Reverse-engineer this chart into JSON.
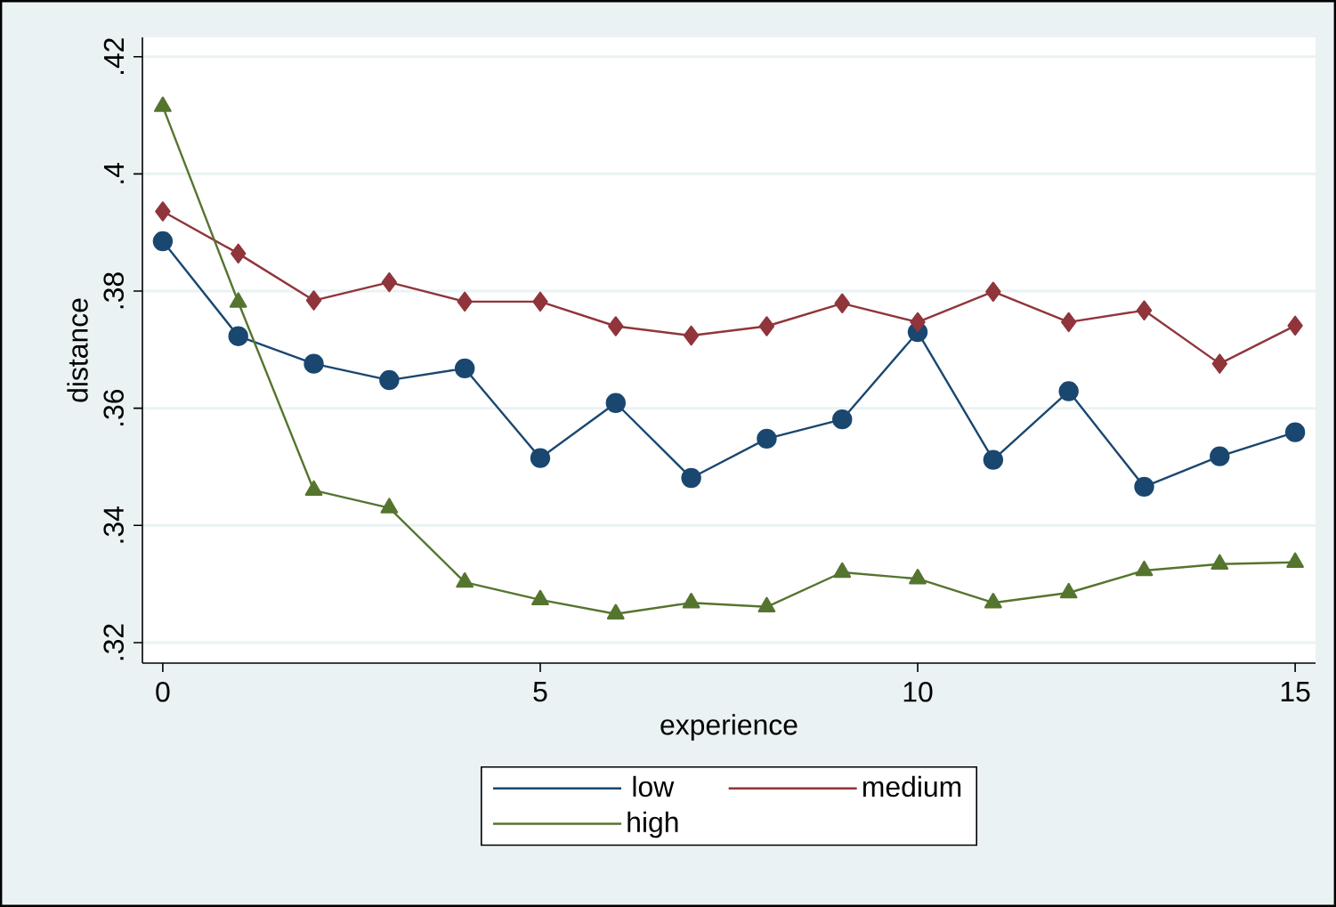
{
  "chart_data": {
    "type": "line",
    "xlabel": "experience",
    "ylabel": "distance",
    "x": [
      0,
      1,
      2,
      3,
      4,
      5,
      6,
      7,
      8,
      9,
      10,
      11,
      12,
      13,
      14,
      15
    ],
    "series": [
      {
        "name": "low",
        "color": "#1a476f",
        "marker": "circle",
        "values": [
          0.3885,
          0.3723,
          0.3676,
          0.3648,
          0.3668,
          0.3515,
          0.3609,
          0.3481,
          0.3548,
          0.3581,
          0.373,
          0.3512,
          0.3629,
          0.3466,
          0.3518,
          0.3559
        ]
      },
      {
        "name": "medium",
        "color": "#90353b",
        "marker": "diamond",
        "values": [
          0.3936,
          0.3864,
          0.3784,
          0.3815,
          0.3782,
          0.3782,
          0.374,
          0.3724,
          0.374,
          0.3779,
          0.3747,
          0.3799,
          0.3747,
          0.3767,
          0.3676,
          0.3741
        ]
      },
      {
        "name": "high",
        "color": "#55752f",
        "marker": "triangle",
        "values": [
          0.4115,
          0.3781,
          0.346,
          0.343,
          0.3303,
          0.3273,
          0.3249,
          0.3268,
          0.3261,
          0.332,
          0.3309,
          0.3268,
          0.3285,
          0.3323,
          0.3334,
          0.3337
        ]
      }
    ],
    "xlim": [
      -0.27,
      15.27
    ],
    "ylim": [
      0.3165,
      0.4233
    ],
    "xticks": [
      0,
      5,
      10,
      15
    ],
    "yticks": [
      {
        "value": 0.32,
        "label": ".32"
      },
      {
        "value": 0.34,
        "label": ".34"
      },
      {
        "value": 0.36,
        "label": ".36"
      },
      {
        "value": 0.38,
        "label": ".38"
      },
      {
        "value": 0.4,
        "label": ".4"
      },
      {
        "value": 0.42,
        "label": ".42"
      }
    ],
    "grid": "y",
    "legend": "bottom",
    "line_style": "solid"
  }
}
